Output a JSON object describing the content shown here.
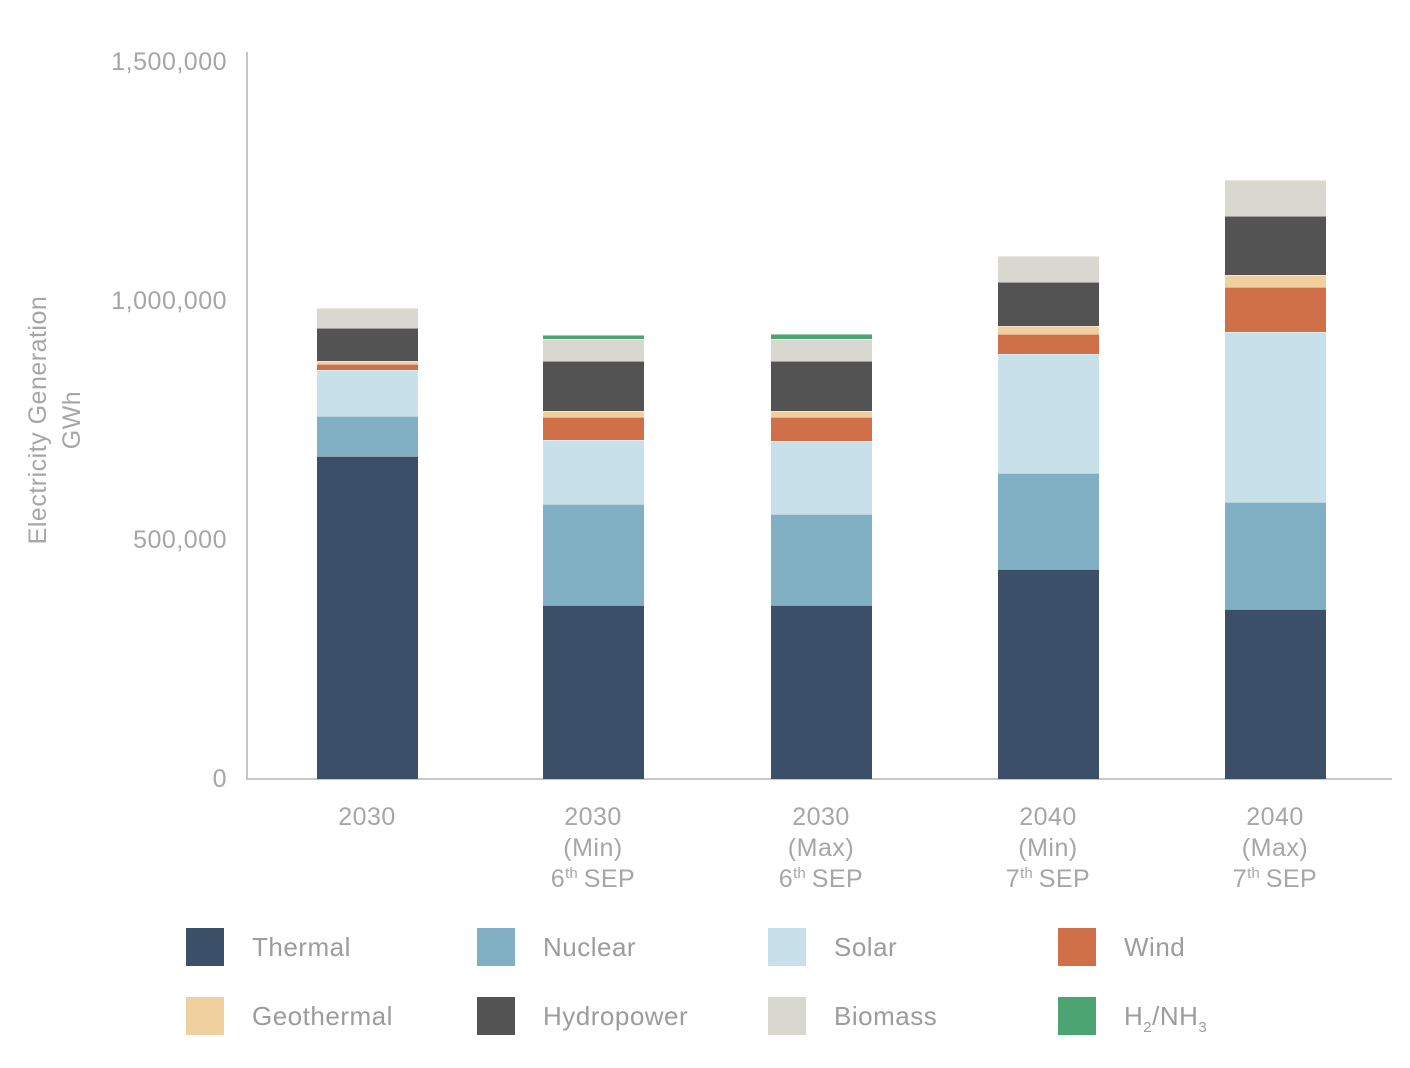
{
  "page": {
    "background": "#FFFFFF"
  },
  "chart_data": {
    "type": "bar",
    "stacked": true,
    "title": "",
    "ylabel_lines": [
      "Electricity Generation",
      "GWh"
    ],
    "xlabel": "",
    "ylim": [
      0,
      1500000
    ],
    "yticks": [
      0,
      500000,
      1000000,
      1500000
    ],
    "ytick_labels": [
      "0",
      "500,000",
      "1,000,000",
      "1,500,000"
    ],
    "grid": false,
    "legend_position": "bottom",
    "colors": {
      "axis_text": "#A6A6A6",
      "legend_text": "#9C9C9C",
      "axis_line": "#C7C7C7"
    },
    "categories": [
      {
        "id": "2030",
        "lines": [
          "2030"
        ]
      },
      {
        "id": "2030-min",
        "lines": [
          "2030",
          "(Min)"
        ],
        "sep_line": {
          "number": "6",
          "ordinal": "th",
          "text": "SEP"
        }
      },
      {
        "id": "2030-max",
        "lines": [
          "2030",
          "(Max)"
        ],
        "sep_line": {
          "number": "6",
          "ordinal": "th",
          "text": "SEP"
        }
      },
      {
        "id": "2040-min",
        "lines": [
          "2040",
          "(Min)"
        ],
        "sep_line": {
          "number": "7",
          "ordinal": "th",
          "text": "SEP"
        }
      },
      {
        "id": "2040-max",
        "lines": [
          "2040",
          "(Max)"
        ],
        "sep_line": {
          "number": "7",
          "ordinal": "th",
          "text": "SEP"
        }
      }
    ],
    "series": [
      {
        "id": "thermal",
        "name": "Thermal",
        "color": "#3B5068",
        "values": [
          675000,
          365000,
          365000,
          440000,
          355000
        ]
      },
      {
        "id": "nuclear",
        "name": "Nuclear",
        "color": "#81AFC4",
        "values": [
          85000,
          210000,
          190000,
          200000,
          225000
        ]
      },
      {
        "id": "solar",
        "name": "Solar",
        "color": "#C7E0EA",
        "values": [
          95000,
          134000,
          153000,
          250000,
          355000
        ]
      },
      {
        "id": "wind",
        "name": "Wind",
        "color": "#CF7049",
        "values": [
          13000,
          48000,
          50000,
          42000,
          95000
        ]
      },
      {
        "id": "geothermal",
        "name": "Geothermal",
        "color": "#F0D09E",
        "values": [
          6000,
          13000,
          11000,
          15000,
          25000
        ]
      },
      {
        "id": "hydropower",
        "name": "Hydropower",
        "color": "#535353",
        "values": [
          70000,
          105000,
          105000,
          92000,
          123000
        ]
      },
      {
        "id": "biomass",
        "name": "Biomass",
        "color": "#D8D7D0",
        "values": [
          42000,
          45000,
          47000,
          56000,
          75000
        ]
      },
      {
        "id": "h2nh3",
        "name": "H2/NH3",
        "color": "#4DA473",
        "label_parts": [
          {
            "t": "H"
          },
          {
            "t": "2",
            "sub": true
          },
          {
            "t": "/NH"
          },
          {
            "t": "3",
            "sub": true
          }
        ],
        "values": [
          0,
          10000,
          10000,
          0,
          0
        ]
      }
    ]
  }
}
